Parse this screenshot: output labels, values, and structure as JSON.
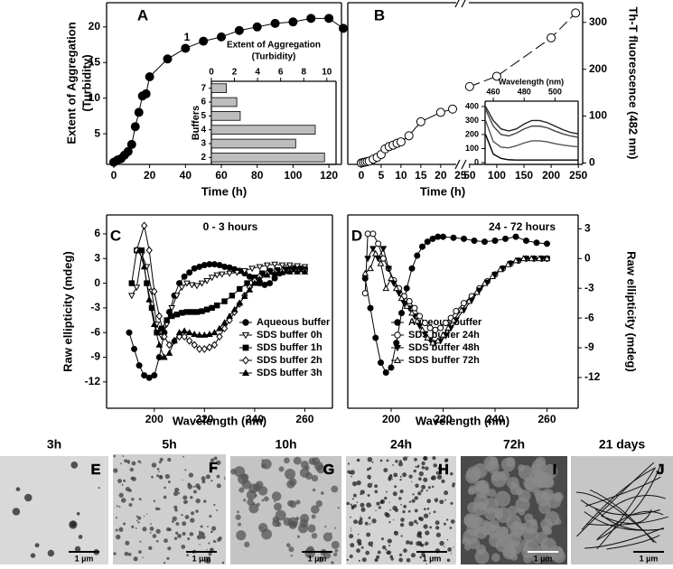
{
  "chart_data": [
    {
      "type": "line",
      "panel": "A",
      "xlabel": "Time (h)",
      "ylabel": [
        "Extent of Aggregation",
        "(Turbidity)"
      ],
      "annotations": [
        "1"
      ],
      "xlim": [
        -4,
        127
      ],
      "ylim": [
        0.7,
        23.4
      ],
      "xticks": [
        0,
        20,
        40,
        60,
        80,
        100,
        120
      ],
      "yticks": [
        5,
        10,
        15,
        20
      ],
      "series": [
        {
          "color": "#000000",
          "marker": "circle",
          "filled": true,
          "x": [
            0,
            2,
            4,
            6,
            8,
            10,
            12,
            14,
            16,
            18,
            20,
            30,
            40,
            50,
            60,
            70,
            80,
            90,
            100,
            110,
            120,
            128
          ],
          "values": [
            1,
            1.3,
            1.5,
            2,
            2.5,
            3.5,
            6,
            8,
            10.3,
            10.6,
            13,
            15.5,
            17,
            18,
            18.6,
            19.5,
            20,
            20.5,
            20.7,
            21.2,
            21.2,
            19.8
          ]
        }
      ]
    },
    {
      "type": "barh",
      "xlabel": [
        "Extent of Aggregation",
        "(Turbidity)"
      ],
      "ylabel": "Buffers",
      "categories": [
        "7",
        "6",
        "5",
        "4",
        "3",
        "2"
      ],
      "values": [
        1.3,
        2.2,
        2.5,
        9,
        7.3,
        9.8
      ],
      "color": "#bdbdbd",
      "xlim": [
        0,
        10.8
      ],
      "xticks": [
        0,
        2,
        4,
        6,
        8,
        10
      ]
    },
    {
      "type": "line",
      "panel": "B",
      "xlabel": "Time (h)",
      "xlim": [
        -3.4,
        25.5
      ],
      "ylim": [
        -3,
        342
      ],
      "xticks": [
        0,
        5,
        10,
        15,
        20,
        25
      ],
      "series": [
        {
          "color": "#000000",
          "marker": "circle",
          "filled": false,
          "x": [
            0,
            0.5,
            1,
            1.5,
            2,
            3,
            4,
            5,
            6,
            7,
            8,
            9,
            10,
            12,
            15,
            20,
            23
          ],
          "values": [
            0,
            1,
            2,
            3,
            4,
            8,
            12,
            18,
            30,
            35,
            38,
            42,
            45,
            58,
            88,
            108,
            115
          ]
        }
      ]
    },
    {
      "type": "line",
      "ylabel": "Th-T fluorescence (482 nm)",
      "xlim": [
        37,
        258
      ],
      "ylim": [
        -3,
        342
      ],
      "xticks": [
        50,
        100,
        150,
        200,
        250
      ],
      "yticks": [
        0,
        100,
        200,
        300
      ],
      "series": [
        {
          "color": "#000000",
          "marker": "circle",
          "filled": false,
          "dash": true,
          "x": [
            50,
            100,
            200,
            245
          ],
          "values": [
            163,
            185,
            267,
            320
          ]
        }
      ]
    },
    {
      "type": "line",
      "xlabel": "Wavelength (nm)",
      "xlim": [
        454.7,
        515
      ],
      "ylim": [
        -13,
        438
      ],
      "xticks": [
        460,
        480,
        500
      ],
      "yticks": [
        0,
        100,
        200,
        300,
        400
      ],
      "series": [
        {
          "color": "#222222",
          "x": [
            455,
            460,
            465,
            470,
            475,
            480,
            485,
            490,
            495,
            500,
            505,
            510,
            515
          ],
          "values": [
            400,
            300,
            240,
            225,
            240,
            275,
            300,
            300,
            285,
            260,
            235,
            215,
            205
          ]
        },
        {
          "color": "#444444",
          "x": [
            455,
            460,
            465,
            470,
            475,
            480,
            485,
            490,
            495,
            500,
            505,
            510,
            515
          ],
          "values": [
            380,
            260,
            200,
            190,
            210,
            240,
            260,
            260,
            248,
            225,
            205,
            190,
            180
          ]
        },
        {
          "color": "#555555",
          "x": [
            455,
            460,
            465,
            470,
            475,
            480,
            485,
            490,
            495,
            500,
            505,
            510,
            515
          ],
          "values": [
            300,
            150,
            110,
            105,
            120,
            140,
            155,
            155,
            148,
            135,
            125,
            118,
            112
          ]
        },
        {
          "color": "#000000",
          "x": [
            455,
            460,
            465,
            470,
            475,
            480,
            485,
            490,
            495,
            500,
            505,
            510,
            515
          ],
          "values": [
            200,
            60,
            30,
            20,
            18,
            18,
            18,
            18,
            18,
            18,
            18,
            18,
            18
          ]
        }
      ]
    },
    {
      "type": "line",
      "panel": "C",
      "annotations": [
        "0 - 3 hours"
      ],
      "xlabel": "Wavelength (nm)",
      "ylabel": "Raw ellipticity (mdeg)",
      "xlim": [
        181,
        271
      ],
      "ylim": [
        -15.2,
        8.3
      ],
      "xticks": [
        200,
        220,
        240,
        260
      ],
      "yticks": [
        -12,
        -9,
        -6,
        -3,
        0,
        3,
        6
      ],
      "series": [
        {
          "name": "Aqueous buffer",
          "color": "#000000",
          "marker": "circle",
          "filled": true,
          "x": [
            190,
            192,
            194,
            196,
            198,
            200,
            202,
            204,
            206,
            208,
            210,
            212,
            214,
            216,
            218,
            220,
            222,
            224,
            226,
            228,
            230,
            232,
            234,
            236,
            238,
            240,
            242,
            244,
            246,
            248,
            250,
            252,
            254,
            256,
            258,
            260
          ],
          "values": [
            -6,
            -8,
            -10,
            -11.2,
            -11.5,
            -11.2,
            -9,
            -6,
            -3.5,
            -1.5,
            0,
            0.8,
            1.3,
            1.8,
            2,
            2.2,
            2.3,
            2.3,
            2.2,
            2,
            1.9,
            1.7,
            1.5,
            1.2,
            0.8,
            0.3,
            0,
            -0.2,
            0,
            0.6,
            1.2,
            1.5,
            1.7,
            1.8,
            1.8,
            1.8
          ]
        },
        {
          "name": "SDS buffer 0h",
          "color": "#000000",
          "marker": "triangle-down",
          "filled": false,
          "x": [
            191,
            193,
            195,
            197,
            199,
            201,
            203,
            205,
            207,
            209,
            211,
            213,
            215,
            217,
            219,
            221,
            223,
            225,
            227,
            230,
            233,
            236,
            239,
            242,
            245,
            248,
            251,
            254,
            257,
            260
          ],
          "values": [
            -1.5,
            -0.5,
            3.5,
            2,
            -1,
            -5,
            -6.5,
            -5,
            -3,
            -1.5,
            -0.5,
            0,
            -0.2,
            -0.3,
            0,
            0.3,
            0.7,
            1,
            1.1,
            1.2,
            1.3,
            1.5,
            1.8,
            2,
            2.2,
            2.3,
            2.2,
            2.2,
            2.1,
            2
          ]
        },
        {
          "name": "SDS buffer 1h",
          "color": "#000000",
          "marker": "square",
          "filled": true,
          "x": [
            191,
            193,
            195,
            197,
            199,
            201,
            203,
            205,
            207,
            209,
            211,
            213,
            215,
            217,
            219,
            221,
            223,
            225,
            228,
            231,
            234,
            237,
            240,
            243,
            246,
            249,
            252,
            255,
            258,
            260
          ],
          "values": [
            0,
            4,
            4,
            0,
            -3,
            -6,
            -5.5,
            -4.5,
            -4,
            -3.8,
            -3.6,
            -3.5,
            -3.5,
            -3.5,
            -3.4,
            -3.2,
            -3,
            -2.7,
            -2.2,
            -1.5,
            -0.7,
            0,
            0.7,
            1.2,
            1.5,
            1.6,
            1.7,
            1.7,
            1.7,
            1.7
          ]
        },
        {
          "name": "SDS buffer 2h",
          "color": "#000000",
          "marker": "diamond",
          "filled": false,
          "x": [
            193,
            196,
            198,
            200,
            202,
            204,
            206,
            208,
            210,
            212,
            214,
            216,
            218,
            220,
            222,
            224,
            226,
            228,
            230,
            232,
            234,
            236,
            238,
            240,
            242,
            245,
            248,
            251,
            254,
            257,
            260
          ],
          "values": [
            4,
            7,
            4,
            -1,
            -4,
            -6.5,
            -7.5,
            -7,
            -6.5,
            -6.5,
            -7,
            -7.5,
            -8,
            -8,
            -7.8,
            -7.5,
            -6.5,
            -5.5,
            -4.5,
            -3.5,
            -2.5,
            -1.5,
            -0.5,
            0.3,
            0.8,
            1.2,
            1.4,
            1.5,
            1.5,
            1.5,
            1.5
          ]
        },
        {
          "name": "SDS buffer 3h",
          "color": "#000000",
          "marker": "triangle-up",
          "filled": true,
          "x": [
            194,
            196,
            198,
            200,
            202,
            204,
            206,
            208,
            210,
            212,
            214,
            216,
            218,
            220,
            222,
            224,
            226,
            228,
            230,
            232,
            234,
            236,
            238,
            240,
            242,
            245,
            248,
            251,
            254,
            257,
            260
          ],
          "values": [
            4,
            2,
            -2,
            -5,
            -7.5,
            -9,
            -8.5,
            -7,
            -6,
            -5.8,
            -6,
            -6.2,
            -6.3,
            -6.3,
            -6.2,
            -6,
            -5.5,
            -4.8,
            -4,
            -3.2,
            -2.4,
            -1.6,
            -0.8,
            0,
            0.5,
            1,
            1.2,
            1.3,
            1.4,
            1.4,
            1.4
          ]
        }
      ]
    },
    {
      "type": "line",
      "panel": "D",
      "annotations": [
        "24 - 72 hours"
      ],
      "xlabel": "Wavelength (nm)",
      "ylabel": "Raw ellipticity (mdeg)",
      "xlim": [
        183.3,
        272
      ],
      "ylim": [
        -15.1,
        4.4
      ],
      "xticks": [
        200,
        220,
        240,
        260
      ],
      "yticks": [
        -12,
        -9,
        -6,
        -3,
        0,
        3
      ],
      "series": [
        {
          "name": "Aqueous buffer",
          "color": "#000000",
          "marker": "circle",
          "filled": true,
          "x": [
            190,
            192,
            194,
            196,
            198,
            200,
            202,
            204,
            206,
            208,
            210,
            212,
            214,
            216,
            218,
            220,
            224,
            228,
            232,
            236,
            240,
            244,
            248,
            252,
            256,
            260
          ],
          "values": [
            -2,
            -5,
            -8,
            -10.5,
            -11.5,
            -11,
            -8.5,
            -5.5,
            -3,
            -1,
            0.3,
            1.2,
            1.7,
            2,
            2.2,
            2.2,
            2.1,
            2,
            1.8,
            1.7,
            1.8,
            2,
            2.2,
            1.8,
            1.6,
            1.5
          ]
        },
        {
          "name": "SDS buffer 24h",
          "color": "#000000",
          "marker": "circle",
          "filled": false,
          "x": [
            190,
            191,
            193,
            195,
            197,
            199,
            201,
            203,
            205,
            207,
            209,
            211,
            213,
            215,
            217,
            219,
            221,
            223,
            225,
            228,
            231,
            234,
            237,
            240,
            243,
            246,
            249,
            252,
            255,
            258,
            260
          ],
          "values": [
            -3.5,
            2.5,
            2.5,
            1.5,
            0,
            -1,
            -2.2,
            -3,
            -3.8,
            -4.3,
            -5,
            -5.8,
            -6.5,
            -7,
            -7.2,
            -7,
            -6.5,
            -6,
            -5.3,
            -4.5,
            -3.8,
            -3,
            -2.3,
            -1.6,
            -1,
            -0.5,
            -0.2,
            0,
            0,
            0,
            0
          ]
        },
        {
          "name": "SDS buffer 48h",
          "color": "#000000",
          "marker": "triangle-down",
          "filled": true,
          "x": [
            191,
            193,
            195,
            197,
            199,
            201,
            203,
            205,
            207,
            209,
            211,
            213,
            215,
            217,
            219,
            221,
            223,
            225,
            228,
            231,
            234,
            237,
            240,
            243,
            246,
            249,
            252,
            255,
            258,
            260
          ],
          "values": [
            0,
            1,
            0,
            1,
            -1,
            -2.5,
            -3.5,
            -4.5,
            -5,
            -5.8,
            -6.8,
            -7.6,
            -8.2,
            -8.5,
            -8.3,
            -7.8,
            -7,
            -6.2,
            -5.2,
            -4.2,
            -3.2,
            -2.4,
            -1.6,
            -1,
            -0.5,
            -0.2,
            0,
            0,
            0,
            0
          ]
        },
        {
          "name": "SDS buffer 72h",
          "color": "#000000",
          "marker": "triangle-up",
          "filled": false,
          "x": [
            190,
            192,
            194,
            196,
            198,
            200,
            202,
            204,
            206,
            208,
            210,
            212,
            214,
            216,
            218,
            220,
            222,
            224,
            227,
            230,
            233,
            236,
            239,
            242,
            245,
            248,
            251,
            254,
            257,
            260
          ],
          "values": [
            -1.5,
            -1,
            0.5,
            -0.5,
            -3,
            -2,
            -3,
            -4,
            -4.8,
            -5.5,
            -6.3,
            -7.2,
            -8,
            -8.5,
            -8.3,
            -7.7,
            -7,
            -6.2,
            -5.2,
            -4.3,
            -3.4,
            -2.5,
            -1.8,
            -1.1,
            -0.6,
            -0.2,
            0,
            0,
            0,
            0
          ]
        }
      ]
    }
  ],
  "micrographs": [
    {
      "title": "3h",
      "panel": "E",
      "scale": "1 µm"
    },
    {
      "title": "5h",
      "panel": "F",
      "scale": "1 µm"
    },
    {
      "title": "10h",
      "panel": "G",
      "scale": "1 µm"
    },
    {
      "title": "24h",
      "panel": "H",
      "scale": "1 µm"
    },
    {
      "title": "72h",
      "panel": "I",
      "scale": "1 µm"
    },
    {
      "title": "21 days",
      "panel": "J",
      "scale": "1 µm"
    }
  ]
}
